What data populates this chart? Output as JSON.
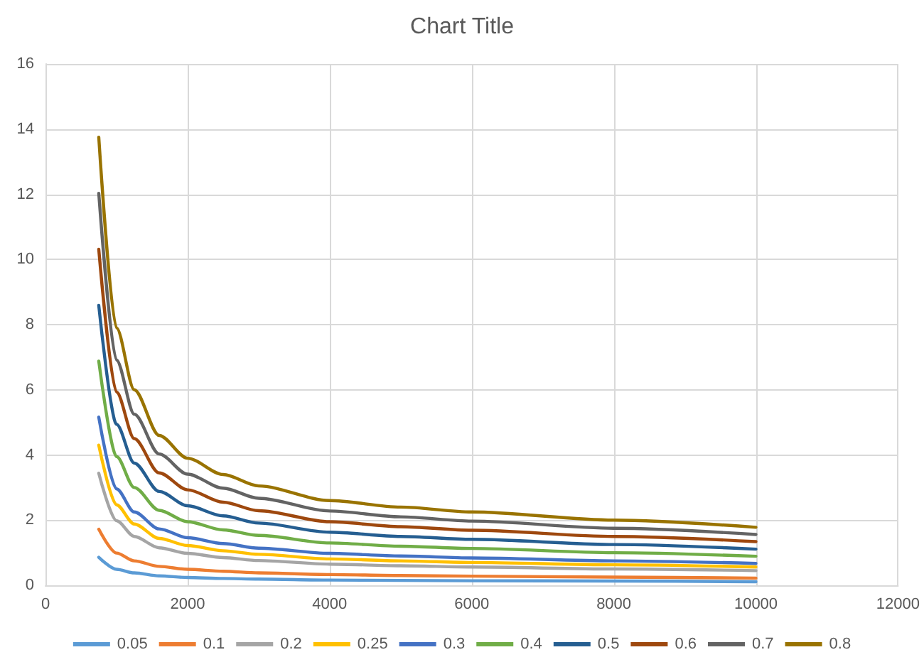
{
  "chart_data": {
    "type": "line",
    "title": "Chart Title",
    "x": [
      750,
      1000,
      1250,
      1600,
      2000,
      2500,
      3000,
      4000,
      5000,
      6000,
      8000,
      10000
    ],
    "xlim": [
      0,
      12000
    ],
    "xticks": [
      0,
      2000,
      4000,
      6000,
      8000,
      10000,
      12000
    ],
    "ylim": [
      0,
      16
    ],
    "yticks": [
      0,
      2,
      4,
      6,
      8,
      10,
      12,
      14,
      16
    ],
    "grid": true,
    "legend": "bottom",
    "marker": "none",
    "series": [
      {
        "name": "0.05",
        "color": "#5b9bd5",
        "values": [
          0.86,
          0.49,
          0.38,
          0.29,
          0.24,
          0.21,
          0.19,
          0.16,
          0.15,
          0.14,
          0.13,
          0.11
        ]
      },
      {
        "name": "0.1",
        "color": "#ed7d31",
        "values": [
          1.72,
          0.99,
          0.75,
          0.58,
          0.49,
          0.43,
          0.38,
          0.33,
          0.3,
          0.28,
          0.25,
          0.22
        ]
      },
      {
        "name": "0.2",
        "color": "#a5a5a5",
        "values": [
          3.44,
          1.98,
          1.5,
          1.15,
          0.98,
          0.85,
          0.76,
          0.65,
          0.6,
          0.56,
          0.5,
          0.45
        ]
      },
      {
        "name": "0.25",
        "color": "#ffc000",
        "values": [
          4.3,
          2.47,
          1.88,
          1.44,
          1.22,
          1.06,
          0.95,
          0.81,
          0.75,
          0.7,
          0.63,
          0.56
        ]
      },
      {
        "name": "0.3",
        "color": "#4472c4",
        "values": [
          5.16,
          2.96,
          2.25,
          1.73,
          1.46,
          1.28,
          1.14,
          0.98,
          0.9,
          0.84,
          0.75,
          0.67
        ]
      },
      {
        "name": "0.4",
        "color": "#70ad47",
        "values": [
          6.88,
          3.95,
          3.0,
          2.3,
          1.95,
          1.7,
          1.53,
          1.3,
          1.2,
          1.13,
          1.0,
          0.89
        ]
      },
      {
        "name": "0.5",
        "color": "#255e91",
        "values": [
          8.59,
          4.94,
          3.75,
          2.88,
          2.44,
          2.13,
          1.91,
          1.63,
          1.5,
          1.41,
          1.25,
          1.11
        ]
      },
      {
        "name": "0.6",
        "color": "#9e480e",
        "values": [
          10.31,
          5.93,
          4.5,
          3.45,
          2.93,
          2.55,
          2.29,
          1.95,
          1.8,
          1.69,
          1.5,
          1.34
        ]
      },
      {
        "name": "0.7",
        "color": "#636363",
        "values": [
          12.03,
          6.91,
          5.25,
          4.03,
          3.41,
          2.98,
          2.67,
          2.28,
          2.1,
          1.97,
          1.75,
          1.56
        ]
      },
      {
        "name": "0.8",
        "color": "#997300",
        "values": [
          13.75,
          7.9,
          6.0,
          4.6,
          3.9,
          3.4,
          3.05,
          2.6,
          2.4,
          2.25,
          2.0,
          1.78
        ]
      }
    ]
  }
}
